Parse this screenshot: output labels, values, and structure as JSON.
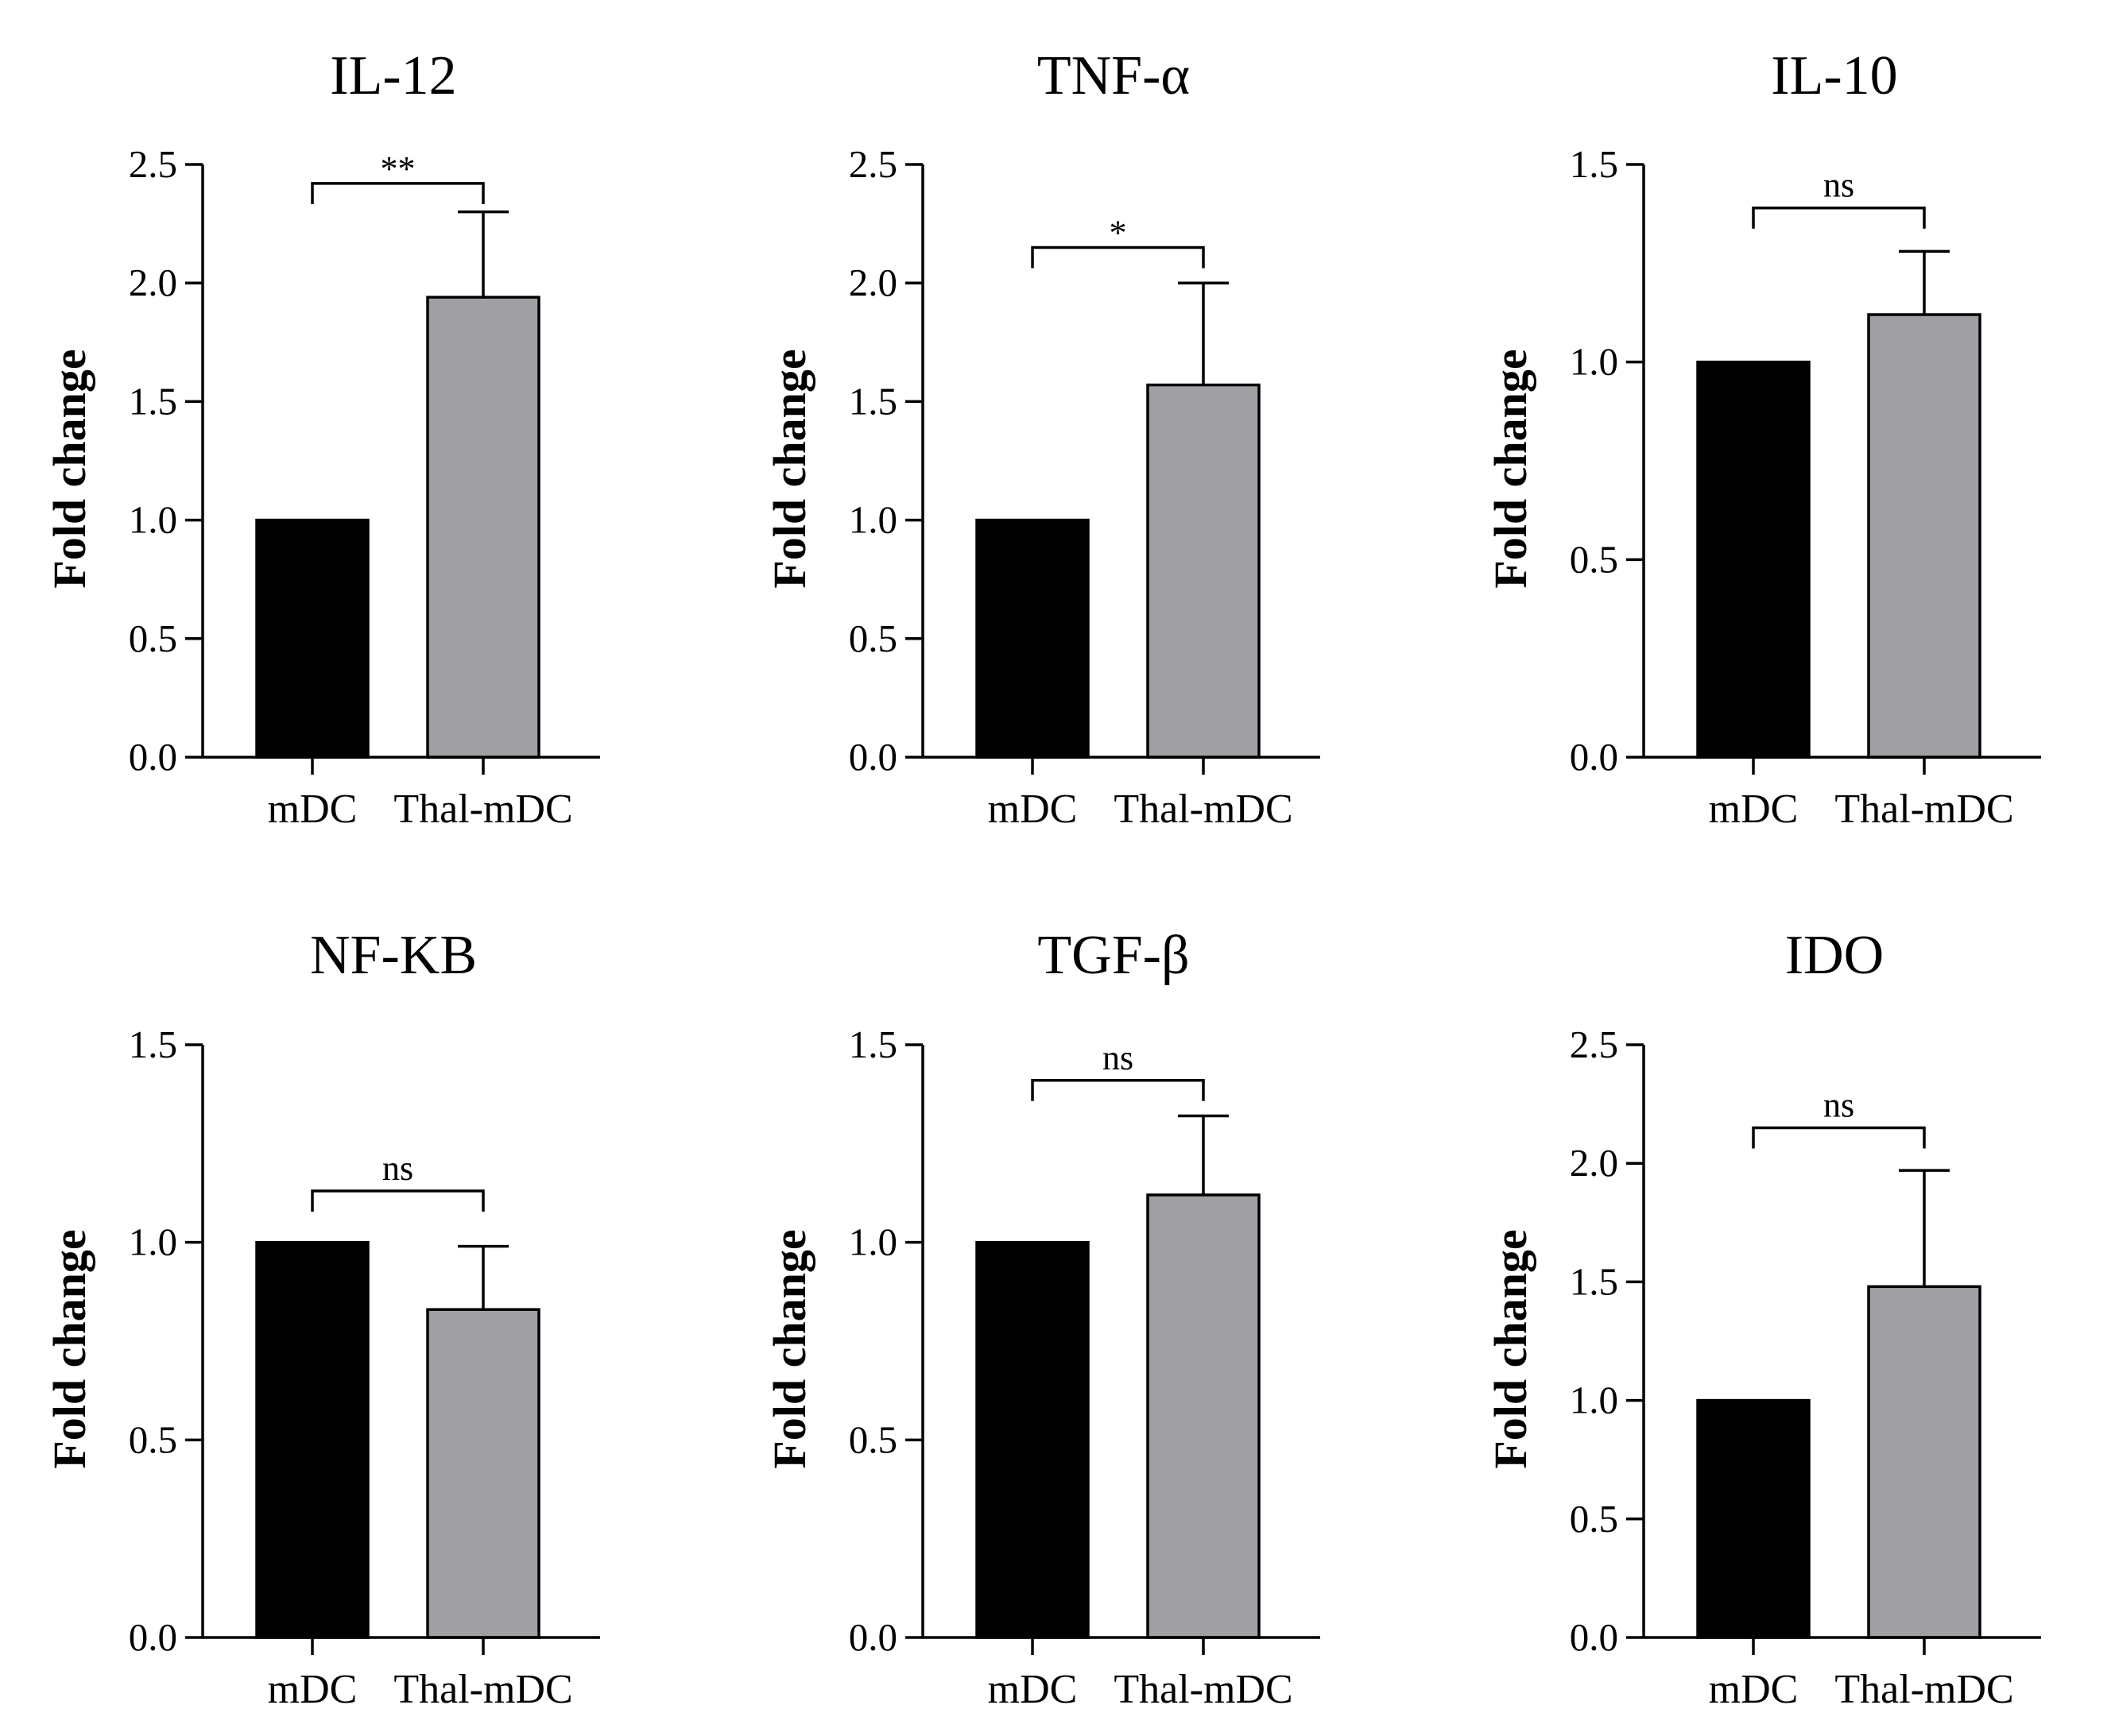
{
  "colors": {
    "mDC": "#000000",
    "Thal-mDC": "#a09fa4",
    "axis": "#000000"
  },
  "chart_data": [
    {
      "type": "bar",
      "title": "IL-12",
      "categories": [
        "mDC",
        "Thal-mDC"
      ],
      "values": [
        1.0,
        1.94
      ],
      "error_upper": [
        0,
        0.36
      ],
      "ylabel": "Fold change",
      "xlabel": "",
      "ylim": [
        0,
        2.5
      ],
      "yticks": [
        "0.0",
        "0.5",
        "1.0",
        "1.5",
        "2.0",
        "2.5"
      ],
      "significance": {
        "label": "**",
        "y": 2.42
      }
    },
    {
      "type": "bar",
      "title": "TNF-α",
      "categories": [
        "mDC",
        "Thal-mDC"
      ],
      "values": [
        1.0,
        1.57
      ],
      "error_upper": [
        0,
        0.43
      ],
      "ylabel": "Fold change",
      "xlabel": "",
      "ylim": [
        0,
        2.5
      ],
      "yticks": [
        "0.0",
        "0.5",
        "1.0",
        "1.5",
        "2.0",
        "2.5"
      ],
      "significance": {
        "label": "*",
        "y": 2.15
      }
    },
    {
      "type": "bar",
      "title": "IL-10",
      "categories": [
        "mDC",
        "Thal-mDC"
      ],
      "values": [
        1.0,
        1.12
      ],
      "error_upper": [
        0,
        0.16
      ],
      "ylabel": "Fold change",
      "xlabel": "",
      "ylim": [
        0,
        1.5
      ],
      "yticks": [
        "0.0",
        "0.5",
        "1.0",
        "1.5"
      ],
      "significance": {
        "label": "ns",
        "y": 1.39
      }
    },
    {
      "type": "bar",
      "title": "NF-KB",
      "categories": [
        "mDC",
        "Thal-mDC"
      ],
      "values": [
        1.0,
        0.83
      ],
      "error_upper": [
        0,
        0.16
      ],
      "ylabel": "Fold change",
      "xlabel": "",
      "ylim": [
        0,
        1.5
      ],
      "yticks": [
        "0.0",
        "0.5",
        "1.0",
        "1.5"
      ],
      "significance": {
        "label": "ns",
        "y": 1.13
      }
    },
    {
      "type": "bar",
      "title": "TGF-β",
      "categories": [
        "mDC",
        "Thal-mDC"
      ],
      "values": [
        1.0,
        1.12
      ],
      "error_upper": [
        0,
        0.2
      ],
      "ylabel": "Fold change",
      "xlabel": "",
      "ylim": [
        0,
        1.5
      ],
      "yticks": [
        "0.0",
        "0.5",
        "1.0",
        "1.5"
      ],
      "significance": {
        "label": "ns",
        "y": 1.41
      }
    },
    {
      "type": "bar",
      "title": "IDO",
      "categories": [
        "mDC",
        "Thal-mDC"
      ],
      "values": [
        1.0,
        1.48
      ],
      "error_upper": [
        0,
        0.49
      ],
      "ylabel": "Fold change",
      "xlabel": "",
      "ylim": [
        0,
        2.5
      ],
      "yticks": [
        "0.0",
        "0.5",
        "1.0",
        "1.5",
        "2.0",
        "2.5"
      ],
      "significance": {
        "label": "ns",
        "y": 2.15
      }
    }
  ]
}
